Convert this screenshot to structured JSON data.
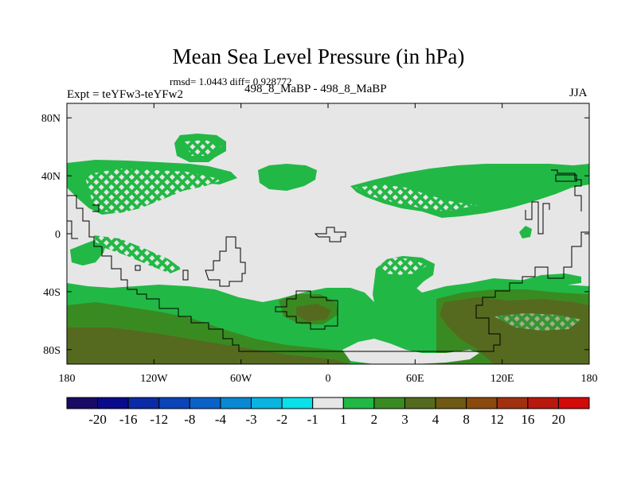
{
  "title": "Mean Sea Level Pressure (in hPa)",
  "stats": "rmsd= 1.0443 diff= 0.928772",
  "expt": "Expt = teYFw3-teYFw2",
  "comparison": "498_8_MaBP - 498_8_MaBP",
  "season": "JJA",
  "lat_ticks": [
    {
      "label": "80N",
      "value": 80
    },
    {
      "label": "40N",
      "value": 40
    },
    {
      "label": "0",
      "value": 0
    },
    {
      "label": "40S",
      "value": -40
    },
    {
      "label": "80S",
      "value": -80
    }
  ],
  "lon_ticks": [
    {
      "label": "180",
      "value": -180
    },
    {
      "label": "120W",
      "value": -120
    },
    {
      "label": "60W",
      "value": -60
    },
    {
      "label": "0",
      "value": 0
    },
    {
      "label": "60E",
      "value": 60
    },
    {
      "label": "120E",
      "value": 120
    },
    {
      "label": "180",
      "value": 180
    }
  ],
  "colorbar": {
    "colors": [
      "#1a0a66",
      "#0a0a8c",
      "#0a2aa8",
      "#0a44b8",
      "#0a62c8",
      "#0a88d4",
      "#0ab4e0",
      "#0ae0e8",
      "#e6e6e6",
      "#22b845",
      "#3a8a22",
      "#556a1e",
      "#6e5a12",
      "#8a4a0e",
      "#a03010",
      "#b8180e",
      "#d40a0a"
    ],
    "labels": [
      "-20",
      "-16",
      "-12",
      "-8",
      "-4",
      "-3",
      "-2",
      "-1",
      "1",
      "2",
      "3",
      "4",
      "8",
      "12",
      "16",
      "20"
    ]
  },
  "colors": {
    "neutral": "#e6e6e6",
    "green": "#22b845",
    "dark_green": "#3a8a22",
    "olive": "#556a1e",
    "coast": "#000000"
  }
}
